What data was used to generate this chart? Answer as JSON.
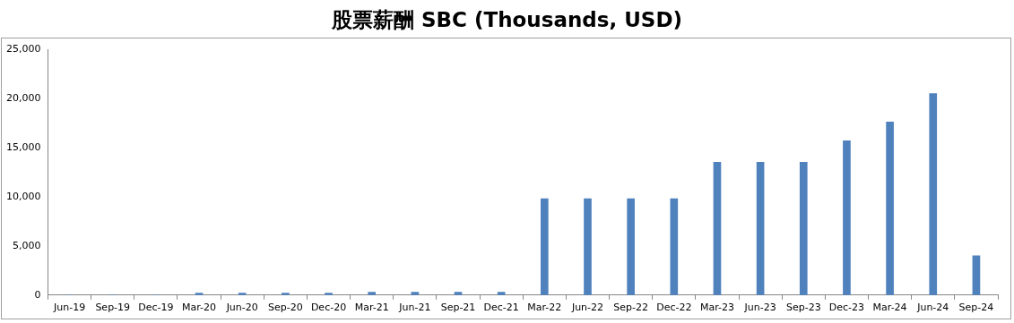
{
  "chart_data": {
    "type": "bar",
    "title": "股票薪酬 SBC (Thousands, USD)",
    "categories": [
      "Jun-19",
      "Sep-19",
      "Dec-19",
      "Mar-20",
      "Jun-20",
      "Sep-20",
      "Dec-20",
      "Mar-21",
      "Jun-21",
      "Sep-21",
      "Dec-21",
      "Mar-22",
      "Jun-22",
      "Sep-22",
      "Dec-22",
      "Mar-23",
      "Jun-23",
      "Sep-23",
      "Dec-23",
      "Mar-24",
      "Jun-24",
      "Sep-24"
    ],
    "values": [
      0,
      0,
      0,
      200,
      200,
      200,
      200,
      300,
      300,
      300,
      300,
      9800,
      9800,
      9800,
      9800,
      13500,
      13500,
      13500,
      15700,
      17600,
      20500,
      4000
    ],
    "color": "#4f81bd",
    "ylim": [
      0,
      25000
    ],
    "yticks": [
      {
        "value": 0,
        "label": "0"
      },
      {
        "value": 5000,
        "label": "5,000"
      },
      {
        "value": 10000,
        "label": "10,000"
      },
      {
        "value": 15000,
        "label": "15,000"
      },
      {
        "value": 20000,
        "label": "20,000"
      },
      {
        "value": 25000,
        "label": "25,000"
      }
    ],
    "grid": false
  }
}
